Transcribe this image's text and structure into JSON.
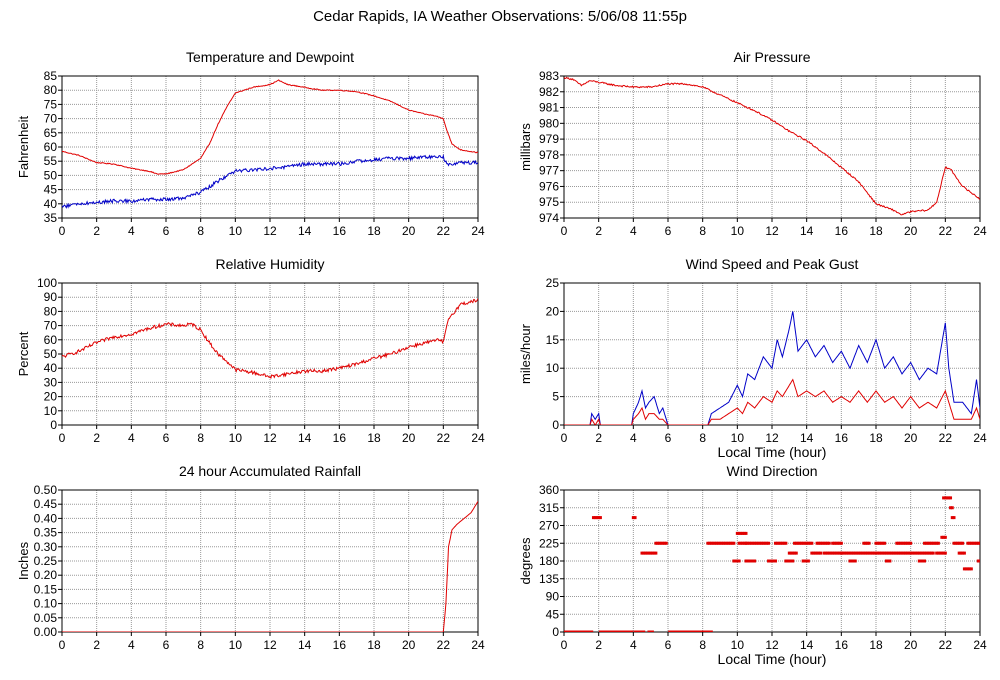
{
  "page": {
    "title": "Cedar Rapids, IA Weather Observations: 5/06/08 11:55p"
  },
  "colors": {
    "red": "#e00000",
    "blue": "#0000c8",
    "grid": "#9a9a9a"
  },
  "chart_data": [
    {
      "id": "temp",
      "type": "line",
      "title": "Temperature and Dewpoint",
      "xlabel": "",
      "ylabel": "Fahrenheit",
      "xlim": [
        0,
        24
      ],
      "xticks": [
        0,
        2,
        4,
        6,
        8,
        10,
        12,
        14,
        16,
        18,
        20,
        22,
        24
      ],
      "ylim": [
        35,
        85
      ],
      "yticks": [
        35,
        40,
        45,
        50,
        55,
        60,
        65,
        70,
        75,
        80,
        85
      ],
      "ytick_decimals": 0,
      "grid": true,
      "series": [
        {
          "color": "red",
          "noise": 0.15,
          "x": [
            0,
            1,
            2,
            3,
            4,
            5,
            5.5,
            6,
            7,
            8,
            8.5,
            9,
            9.5,
            10,
            11,
            12,
            12.5,
            13,
            14,
            15,
            16,
            17,
            18,
            19,
            20,
            21,
            21.5,
            22,
            22.2,
            22.5,
            23,
            23.5,
            24
          ],
          "y": [
            58.5,
            57,
            54.5,
            54,
            52.5,
            51.5,
            50.5,
            50.5,
            52,
            56,
            61,
            68,
            74,
            79,
            81,
            82,
            83.5,
            82,
            81,
            80,
            80,
            79.5,
            78,
            76,
            73,
            71.5,
            71,
            70,
            66,
            61,
            59,
            58.5,
            58
          ]
        },
        {
          "color": "blue",
          "noise": 0.6,
          "x": [
            0,
            1,
            2,
            3,
            4,
            5,
            6,
            7,
            8,
            9,
            10,
            11,
            12,
            13,
            14,
            15,
            16,
            17,
            18,
            19,
            20,
            21,
            22,
            22.2,
            23,
            24
          ],
          "y": [
            39,
            40,
            40.5,
            41,
            41,
            41.5,
            41.5,
            42,
            44,
            48,
            51.5,
            52,
            52.5,
            53,
            54,
            54,
            54,
            55,
            55.5,
            56,
            56,
            56.5,
            56.5,
            54,
            54.5,
            54.5
          ]
        }
      ]
    },
    {
      "id": "pressure",
      "type": "line",
      "title": "Air Pressure",
      "xlabel": "",
      "ylabel": "millibars",
      "xlim": [
        0,
        24
      ],
      "xticks": [
        0,
        2,
        4,
        6,
        8,
        10,
        12,
        14,
        16,
        18,
        20,
        22,
        24
      ],
      "ylim": [
        974,
        983
      ],
      "yticks": [
        974,
        975,
        976,
        977,
        978,
        979,
        980,
        981,
        982,
        983
      ],
      "ytick_decimals": 0,
      "grid": true,
      "series": [
        {
          "color": "red",
          "noise": 0.05,
          "x": [
            0,
            0.5,
            1,
            1.5,
            2,
            3,
            4,
            5,
            6,
            7,
            8,
            9,
            10,
            11,
            12,
            13,
            14,
            15,
            16,
            17,
            18,
            19,
            19.5,
            20,
            21,
            21.5,
            22,
            22.3,
            23,
            24
          ],
          "y": [
            982.9,
            982.8,
            982.4,
            982.7,
            982.6,
            982.4,
            982.3,
            982.3,
            982.5,
            982.5,
            982.3,
            981.8,
            981.3,
            980.8,
            980.2,
            979.5,
            978.9,
            978.1,
            977.2,
            976.3,
            974.9,
            974.5,
            974.2,
            974.4,
            974.5,
            975,
            977.2,
            977.1,
            976,
            975.2
          ]
        }
      ]
    },
    {
      "id": "humidity",
      "type": "line",
      "title": "Relative Humidity",
      "xlabel": "",
      "ylabel": "Percent",
      "xlim": [
        0,
        24
      ],
      "xticks": [
        0,
        2,
        4,
        6,
        8,
        10,
        12,
        14,
        16,
        18,
        20,
        22,
        24
      ],
      "ylim": [
        0,
        100
      ],
      "yticks": [
        0,
        10,
        20,
        30,
        40,
        50,
        60,
        70,
        80,
        90,
        100
      ],
      "ytick_decimals": 0,
      "grid": true,
      "series": [
        {
          "color": "red",
          "noise": 1.2,
          "x": [
            0,
            1,
            2,
            3,
            4,
            5,
            6,
            7,
            7.5,
            8,
            8.5,
            9,
            9.5,
            10,
            11,
            12,
            13,
            14,
            15,
            16,
            17,
            18,
            19,
            20,
            21,
            21.8,
            22,
            22.3,
            23,
            24
          ],
          "y": [
            48,
            52,
            58,
            62,
            64,
            68,
            71,
            70,
            71,
            67,
            58,
            50,
            45,
            39,
            37,
            34,
            36,
            38,
            38,
            40,
            43,
            47,
            50,
            55,
            58,
            60,
            58,
            75,
            85,
            88
          ]
        }
      ]
    },
    {
      "id": "wind",
      "type": "line",
      "title": "Wind Speed and Peak Gust",
      "xlabel": "Local Time (hour)",
      "ylabel": "miles/hour",
      "xlim": [
        0,
        24
      ],
      "xticks": [
        0,
        2,
        4,
        6,
        8,
        10,
        12,
        14,
        16,
        18,
        20,
        22,
        24
      ],
      "ylim": [
        0,
        25
      ],
      "yticks": [
        0,
        5,
        10,
        15,
        20,
        25
      ],
      "ytick_decimals": 0,
      "grid": true,
      "series": [
        {
          "color": "blue",
          "noise": 0,
          "x": [
            0,
            1.5,
            1.6,
            1.8,
            2,
            2.1,
            3.9,
            4,
            4.3,
            4.5,
            4.7,
            4.9,
            5.2,
            5.5,
            5.7,
            6,
            8.3,
            8.5,
            9,
            9.5,
            10,
            10.3,
            10.6,
            11,
            11.5,
            12,
            12.3,
            12.6,
            13,
            13.2,
            13.5,
            14,
            14.5,
            15,
            15.5,
            16,
            16.5,
            17,
            17.5,
            18,
            18.5,
            19,
            19.5,
            20,
            20.5,
            21,
            21.5,
            22,
            22.2,
            22.5,
            23,
            23.5,
            23.8,
            24
          ],
          "y": [
            0,
            0,
            2,
            1,
            2,
            0,
            0,
            2,
            4,
            6,
            3,
            4,
            5,
            2,
            3,
            0,
            0,
            2,
            3,
            4,
            7,
            5,
            9,
            8,
            12,
            10,
            15,
            12,
            17,
            20,
            13,
            15,
            12,
            14,
            11,
            13,
            10,
            14,
            11,
            15,
            10,
            12,
            9,
            11,
            8,
            10,
            9,
            18,
            10,
            4,
            4,
            2,
            8,
            3
          ]
        },
        {
          "color": "red",
          "noise": 0,
          "x": [
            0,
            1.5,
            1.6,
            1.8,
            2,
            2.1,
            3.9,
            4,
            4.3,
            4.5,
            4.7,
            4.9,
            5.2,
            5.5,
            5.7,
            6,
            8.3,
            8.5,
            9,
            9.5,
            10,
            10.3,
            10.6,
            11,
            11.5,
            12,
            12.3,
            12.6,
            13,
            13.2,
            13.5,
            14,
            14.5,
            15,
            15.5,
            16,
            16.5,
            17,
            17.5,
            18,
            18.5,
            19,
            19.5,
            20,
            20.5,
            21,
            21.5,
            22,
            22.2,
            22.5,
            23,
            23.5,
            23.8,
            24
          ],
          "y": [
            0,
            0,
            1,
            0,
            1,
            0,
            0,
            1,
            2,
            3,
            1,
            2,
            2,
            1,
            1,
            0,
            0,
            1,
            1,
            2,
            3,
            2,
            4,
            3,
            5,
            4,
            6,
            5,
            7,
            8,
            5,
            6,
            5,
            6,
            4,
            5,
            4,
            6,
            4,
            6,
            4,
            5,
            3,
            5,
            3,
            4,
            3,
            6,
            4,
            1,
            1,
            1,
            3,
            1
          ]
        }
      ]
    },
    {
      "id": "rain",
      "type": "line",
      "title": "24 hour Accumulated Rainfall",
      "xlabel": "",
      "ylabel": "Inches",
      "xlim": [
        0,
        24
      ],
      "xticks": [
        0,
        2,
        4,
        6,
        8,
        10,
        12,
        14,
        16,
        18,
        20,
        22,
        24
      ],
      "ylim": [
        0,
        0.5
      ],
      "yticks": [
        0,
        0.05,
        0.1,
        0.15,
        0.2,
        0.25,
        0.3,
        0.35,
        0.4,
        0.45,
        0.5
      ],
      "ytick_decimals": 2,
      "grid": true,
      "series": [
        {
          "color": "red",
          "noise": 0,
          "x": [
            0,
            22.0,
            22.15,
            22.3,
            22.5,
            22.8,
            23.2,
            23.6,
            24
          ],
          "y": [
            0,
            0,
            0.1,
            0.3,
            0.36,
            0.38,
            0.4,
            0.42,
            0.46
          ]
        }
      ]
    },
    {
      "id": "winddir",
      "type": "scatter",
      "title": "Wind Direction",
      "xlabel": "Local Time (hour)",
      "ylabel": "degrees",
      "xlim": [
        0,
        24
      ],
      "xticks": [
        0,
        2,
        4,
        6,
        8,
        10,
        12,
        14,
        16,
        18,
        20,
        22,
        24
      ],
      "ylim": [
        0,
        360
      ],
      "yticks": [
        0,
        45,
        90,
        135,
        180,
        225,
        270,
        315,
        360
      ],
      "ytick_decimals": 0,
      "grid": true,
      "series": [
        {
          "color": "red",
          "points": [
            [
              0,
              0,
              1.6
            ],
            [
              1.7,
              290,
              2.1
            ],
            [
              2.1,
              0,
              3.9
            ],
            [
              4,
              290,
              4.1
            ],
            [
              4.1,
              0,
              4.6
            ],
            [
              4.5,
              200,
              5.3
            ],
            [
              5.3,
              225,
              5.9
            ],
            [
              4.9,
              0,
              5.1
            ],
            [
              6.1,
              0,
              8.5
            ],
            [
              8.3,
              225,
              9.8
            ],
            [
              9.8,
              180,
              10.1
            ],
            [
              10.0,
              250,
              10.5
            ],
            [
              10.1,
              225,
              10.5
            ],
            [
              10.5,
              180,
              11.0
            ],
            [
              10.5,
              225,
              11.8
            ],
            [
              11.8,
              180,
              12.2
            ],
            [
              12.2,
              225,
              12.8
            ],
            [
              12.8,
              180,
              13.2
            ],
            [
              13.0,
              200,
              13.4
            ],
            [
              13.3,
              225,
              14.3
            ],
            [
              13.8,
              180,
              14.1
            ],
            [
              14.3,
              200,
              14.8
            ],
            [
              14.6,
              225,
              15.3
            ],
            [
              15.0,
              200,
              16.0
            ],
            [
              15.5,
              225,
              16.0
            ],
            [
              16.0,
              200,
              19.4
            ],
            [
              16.5,
              180,
              16.8
            ],
            [
              17.3,
              225,
              17.6
            ],
            [
              18.0,
              225,
              18.5
            ],
            [
              18.6,
              180,
              18.8
            ],
            [
              19.2,
              225,
              20.0
            ],
            [
              19.5,
              200,
              21.3
            ],
            [
              20.5,
              180,
              20.8
            ],
            [
              20.8,
              225,
              21.6
            ],
            [
              21.5,
              200,
              22.0
            ],
            [
              21.8,
              240,
              22.0
            ],
            [
              21.9,
              340,
              22.3
            ],
            [
              22.3,
              315,
              22.4
            ],
            [
              22.4,
              290,
              22.5
            ],
            [
              22.5,
              225,
              23.0
            ],
            [
              22.8,
              200,
              23.1
            ],
            [
              23.1,
              160,
              23.5
            ],
            [
              23.3,
              225,
              24.0
            ],
            [
              23.9,
              180,
              24.0
            ]
          ]
        }
      ]
    }
  ]
}
